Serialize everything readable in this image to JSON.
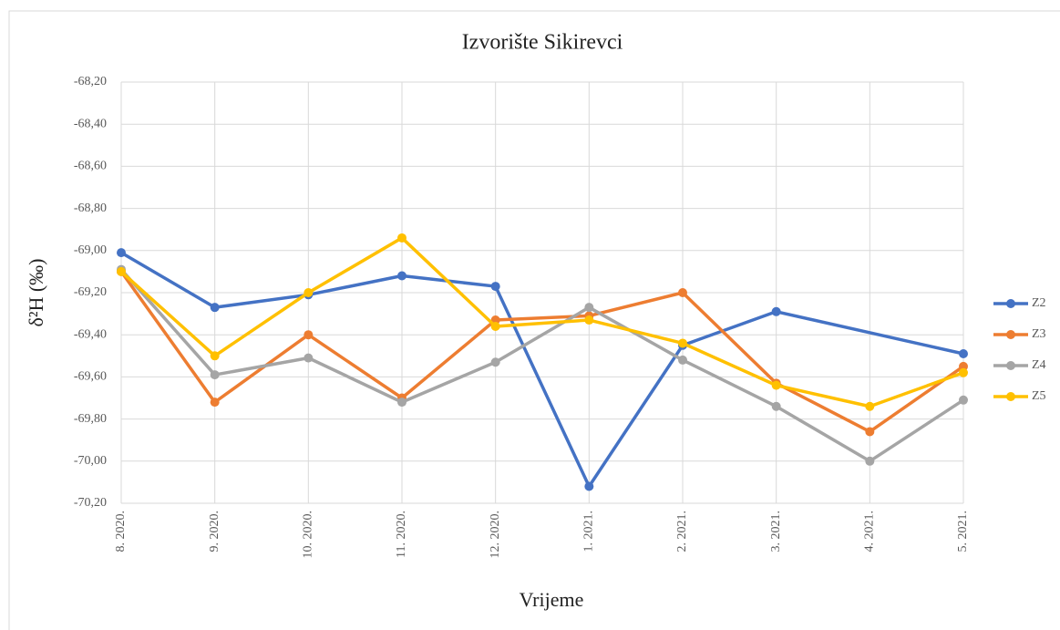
{
  "chart_data": {
    "type": "line",
    "title": "Izvorište Sikirevci",
    "x_label": "Vrijeme",
    "y_label": "δ²H (‰)",
    "categories": [
      "8. 2020.",
      "9. 2020.",
      "10. 2020.",
      "11. 2020.",
      "12. 2020.",
      "1. 2021.",
      "2. 2021.",
      "3. 2021.",
      "4. 2021.",
      "5. 2021."
    ],
    "series": [
      {
        "name": "Z2",
        "color": "#4472c4",
        "values": [
          -69.01,
          -69.27,
          -69.21,
          -69.12,
          -69.17,
          -70.12,
          -69.45,
          -69.29,
          null,
          -69.49
        ]
      },
      {
        "name": "Z3",
        "color": "#ed7d31",
        "values": [
          -69.1,
          -69.72,
          -69.4,
          -69.7,
          -69.33,
          -69.31,
          -69.2,
          -69.63,
          -69.86,
          -69.55
        ]
      },
      {
        "name": "Z4",
        "color": "#a5a5a5",
        "values": [
          -69.09,
          -69.59,
          -69.51,
          -69.72,
          -69.53,
          -69.27,
          -69.52,
          -69.74,
          -70.0,
          -69.71
        ]
      },
      {
        "name": "Z5",
        "color": "#ffc000",
        "values": [
          -69.1,
          -69.5,
          -69.2,
          -68.94,
          -69.36,
          -69.33,
          -69.44,
          -69.64,
          -69.74,
          -69.58
        ]
      }
    ],
    "ylim": [
      -70.2,
      -68.2
    ],
    "yticks": [
      {
        "value": -70.2,
        "label": "-70,20"
      },
      {
        "value": -70.0,
        "label": "-70,00"
      },
      {
        "value": -69.8,
        "label": "-69,80"
      },
      {
        "value": -69.6,
        "label": "-69,60"
      },
      {
        "value": -69.4,
        "label": "-69,40"
      },
      {
        "value": -69.2,
        "label": "-69,20"
      },
      {
        "value": -69.0,
        "label": "-69,00"
      },
      {
        "value": -68.8,
        "label": "-68,80"
      },
      {
        "value": -68.6,
        "label": "-68,60"
      },
      {
        "value": -68.4,
        "label": "-68,40"
      },
      {
        "value": -68.2,
        "label": "-68,20"
      }
    ],
    "grid": true,
    "legend": "right"
  }
}
